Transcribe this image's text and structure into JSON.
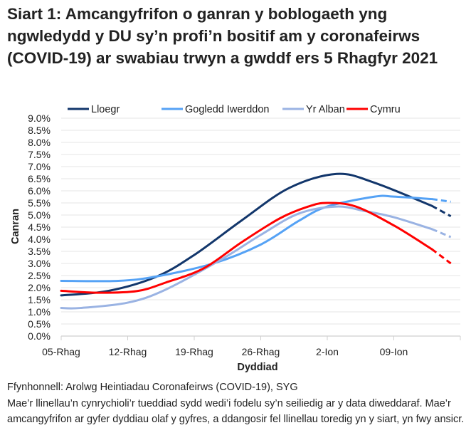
{
  "title": "Siart 1: Amcangyfrifon o ganran y boblogaeth yng ngwledydd y DU sy’n profi’n bositif am y coronafeirws (COVID-19) ar swabiau trwyn a gwddf ers 5 Rhagfyr 2021",
  "footer": {
    "source": "Ffynhonnell: Arolwg Heintiadau Coronafeirws (COVID-19), SYG",
    "note": "Mae’r llinellau’n cynrychioli’r tueddiad sydd wedi’i fodelu sy’n seiliedig ar y data diweddaraf. Mae’r amcangyfrifon ar gyfer dyddiau olaf y gyfres, a ddangosir fel llinellau toredig yn y siart, yn fwy ansicr."
  },
  "chart_data": {
    "type": "line",
    "xlabel": "Dyddiad",
    "ylabel": "Canran",
    "x_tick_labels": [
      "05-Rhag",
      "12-Rhag",
      "19-Rhag",
      "26-Rhag",
      "2-Ion",
      "09-Ion"
    ],
    "x_ticks": [
      "2021-12-05",
      "2021-12-12",
      "2021-12-19",
      "2021-12-26",
      "2022-01-02",
      "2022-01-09"
    ],
    "xlim": [
      "2021-12-05",
      "2022-01-16"
    ],
    "y_tick_labels": [
      "0.0%",
      "0.5%",
      "1.0%",
      "1.5%",
      "2.0%",
      "2.5%",
      "3.0%",
      "3.5%",
      "4.0%",
      "4.5%",
      "5.0%",
      "5.5%",
      "6.0%",
      "6.5%",
      "7.0%",
      "7.5%",
      "8.0%",
      "8.5%",
      "9.0%"
    ],
    "ylim": [
      0,
      9
    ],
    "grid": true,
    "legend": "top",
    "projected_from": "2022-01-13",
    "series": [
      {
        "name": "Lloegr",
        "color": "#12366b",
        "points": [
          [
            "2021-12-05",
            1.68
          ],
          [
            "2021-12-10",
            1.87
          ],
          [
            "2021-12-15",
            2.45
          ],
          [
            "2021-12-19",
            3.35
          ],
          [
            "2021-12-24",
            4.78
          ],
          [
            "2021-12-29",
            6.12
          ],
          [
            "2022-01-03",
            6.7
          ],
          [
            "2022-01-07",
            6.33
          ],
          [
            "2022-01-13",
            5.38
          ],
          [
            "2022-01-15",
            4.95
          ]
        ]
      },
      {
        "name": "Gogledd Iwerddon",
        "color": "#55a2f5",
        "points": [
          [
            "2021-12-05",
            2.28
          ],
          [
            "2021-12-11",
            2.28
          ],
          [
            "2021-12-15",
            2.46
          ],
          [
            "2021-12-21",
            3.0
          ],
          [
            "2021-12-26",
            3.78
          ],
          [
            "2021-12-30",
            4.76
          ],
          [
            "2022-01-02",
            5.35
          ],
          [
            "2022-01-07",
            5.76
          ],
          [
            "2022-01-09",
            5.76
          ],
          [
            "2022-01-13",
            5.66
          ],
          [
            "2022-01-15",
            5.55
          ]
        ]
      },
      {
        "name": "Yr Alban",
        "color": "#9ab3e3",
        "points": [
          [
            "2021-12-05",
            1.16
          ],
          [
            "2021-12-07",
            1.16
          ],
          [
            "2021-12-12",
            1.38
          ],
          [
            "2021-12-16",
            1.92
          ],
          [
            "2021-12-22",
            3.2
          ],
          [
            "2021-12-26",
            4.18
          ],
          [
            "2021-12-30",
            5.06
          ],
          [
            "2022-01-03",
            5.35
          ],
          [
            "2022-01-06",
            5.16
          ],
          [
            "2022-01-09",
            4.91
          ],
          [
            "2022-01-13",
            4.42
          ],
          [
            "2022-01-15",
            4.09
          ]
        ]
      },
      {
        "name": "Cymru",
        "color": "#ff0000",
        "points": [
          [
            "2021-12-05",
            1.87
          ],
          [
            "2021-12-09",
            1.79
          ],
          [
            "2021-12-13",
            1.86
          ],
          [
            "2021-12-16",
            2.21
          ],
          [
            "2021-12-20",
            2.8
          ],
          [
            "2021-12-24",
            3.88
          ],
          [
            "2021-12-28",
            4.86
          ],
          [
            "2021-12-31",
            5.35
          ],
          [
            "2022-01-02",
            5.5
          ],
          [
            "2022-01-05",
            5.35
          ],
          [
            "2022-01-09",
            4.57
          ],
          [
            "2022-01-13",
            3.59
          ],
          [
            "2022-01-15",
            3.0
          ]
        ]
      }
    ]
  }
}
